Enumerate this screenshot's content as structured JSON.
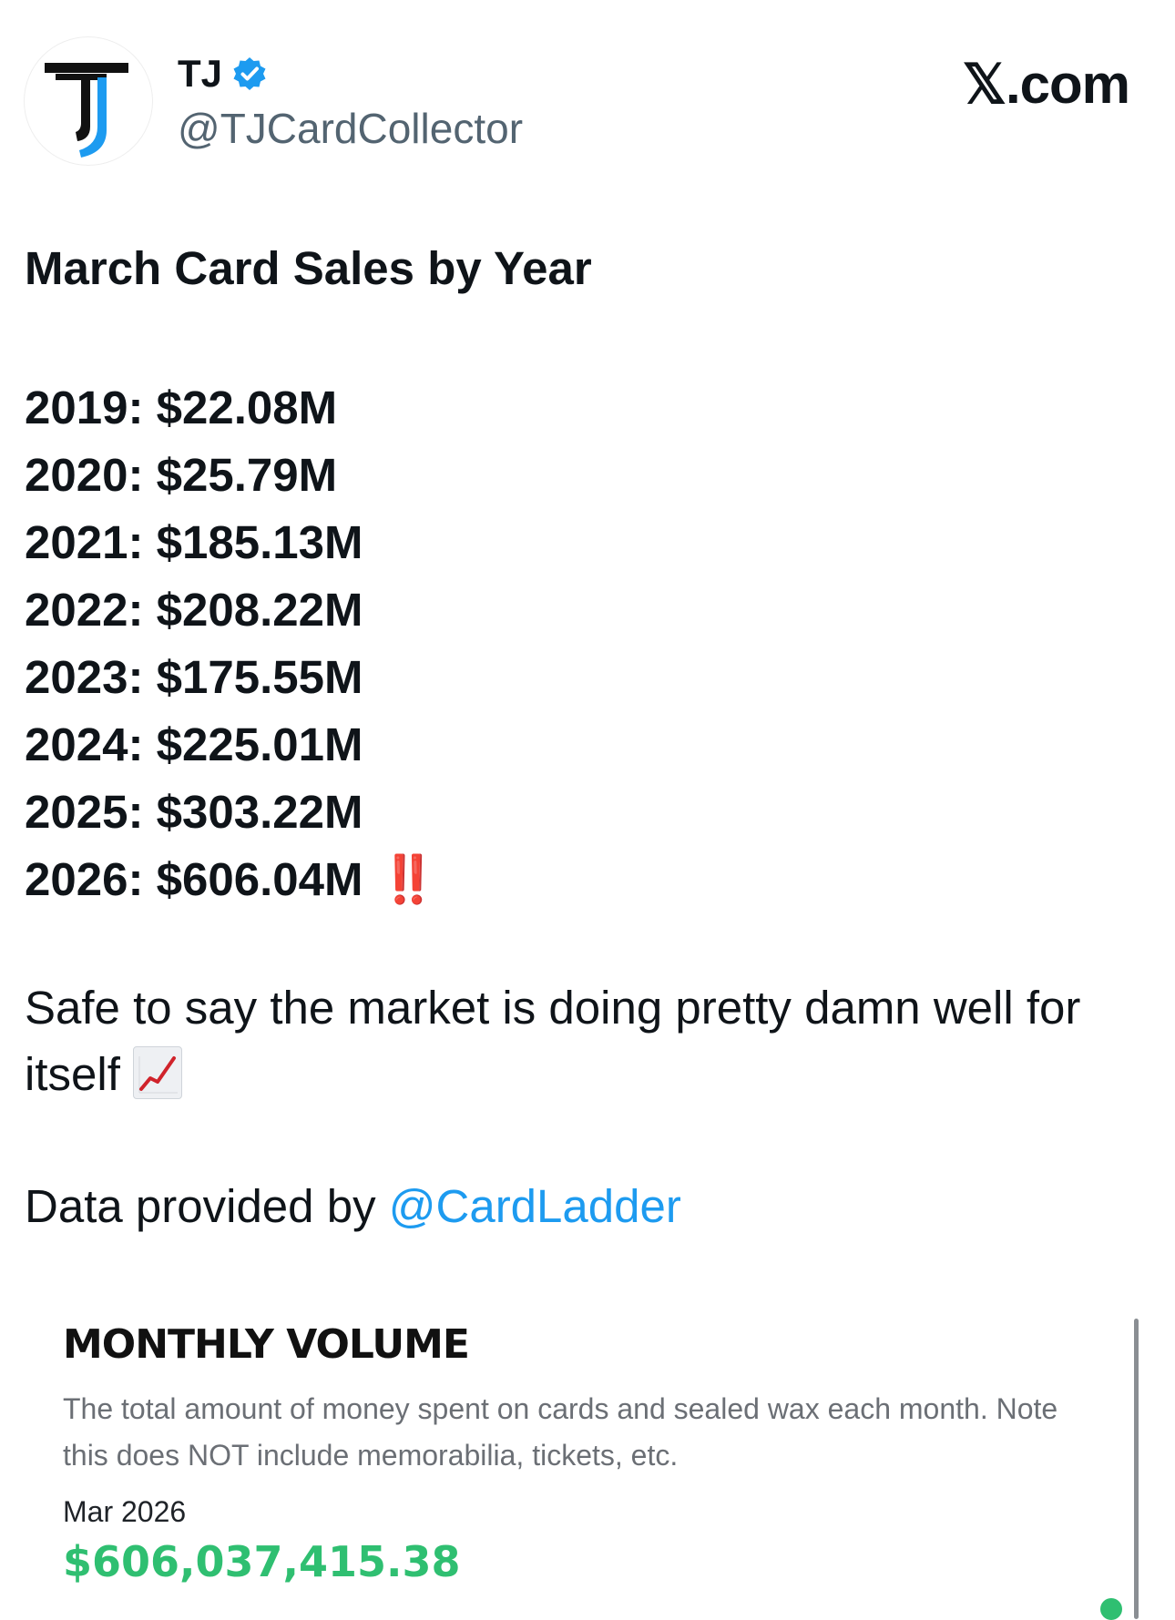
{
  "header": {
    "display_name": "TJ",
    "handle": "@TJCardCollector",
    "brand": "𝕏.com",
    "avatar_icon": "tj-logo-icon",
    "verified_icon": "verified-badge-icon",
    "colors": {
      "verified": "#1d9bf0"
    }
  },
  "tweet": {
    "title": "March Card Sales by Year",
    "sales": [
      {
        "year": "2019",
        "amount": "$22.08M"
      },
      {
        "year": "2020",
        "amount": "$25.79M"
      },
      {
        "year": "2021",
        "amount": "$185.13M"
      },
      {
        "year": "2022",
        "amount": "$208.22M"
      },
      {
        "year": "2023",
        "amount": "$175.55M"
      },
      {
        "year": "2024",
        "amount": "$225.01M"
      },
      {
        "year": "2025",
        "amount": "$303.22M"
      },
      {
        "year": "2026",
        "amount": "$606.04M"
      }
    ],
    "emphasis_emoji": "‼️",
    "commentary": "Safe to say the market is doing pretty damn well for itself",
    "commentary_emoji": "chart-increasing-icon",
    "credit_prefix": "Data provided by ",
    "credit_mention": "@CardLadder",
    "colors": {
      "mention": "#1d9bf0",
      "emphasis": "#e0202e"
    }
  },
  "card": {
    "title": "MONTHLY VOLUME",
    "description": "The total amount of money spent on cards and sealed wax each month. Note this does NOT include memorabilia, tickets, etc.",
    "period": "Mar 2026",
    "value": "$606,037,415.38",
    "colors": {
      "value": "#2fbf71"
    }
  }
}
